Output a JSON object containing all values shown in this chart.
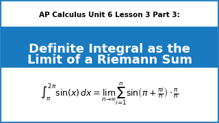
{
  "title_text": "AP Calculus Unit 6 Lesson 3 Part 3:",
  "subtitle_line1": "Definite Integral as the",
  "subtitle_line2": "Limit of a Riemann Sum",
  "formula": "\\int_{\\pi}^{2\\pi} \\sin(x)\\, dx = \\lim_{n \\to \\infty} \\sum_{i=1}^{n} \\sin\\!\\left(\\pi + \\frac{\\pi i}{n}\\right) \\cdot \\frac{\\pi}{n}",
  "bg_top": "#ffffff",
  "bg_blue": "#1a7abf",
  "bg_bottom": "#ffffff",
  "title_color": "#000000",
  "subtitle_color": "#ffffff",
  "formula_color": "#000000",
  "border_color": "#1a7abf",
  "title_fontsize": 7.5,
  "subtitle_fontsize": 13,
  "formula_fontsize": 9
}
